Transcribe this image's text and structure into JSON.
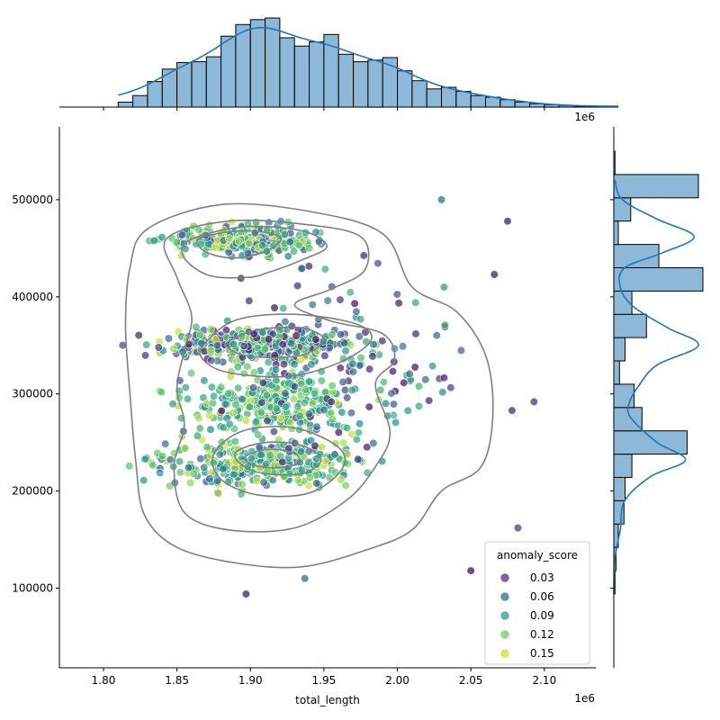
{
  "chart_data": {
    "type": "scatter",
    "title": "",
    "xlabel": "total_length",
    "ylabel": "",
    "x_offset_label": "1e6",
    "x_scale_factor": 1000000,
    "xlim": [
      1770000,
      2135000
    ],
    "ylim": [
      18000,
      575000
    ],
    "x_ticks": [
      1800000,
      1850000,
      1900000,
      1950000,
      2000000,
      2050000,
      2100000
    ],
    "x_tick_labels": [
      "1.80",
      "1.85",
      "1.90",
      "1.95",
      "2.00",
      "2.05",
      "2.10"
    ],
    "y_ticks": [
      100000,
      200000,
      300000,
      400000,
      500000
    ],
    "y_tick_labels": [
      "100000",
      "200000",
      "300000",
      "400000",
      "500000"
    ],
    "grid": false,
    "legend": {
      "title": "anomaly_score",
      "position": "lower-right",
      "entries": [
        {
          "label": "0.03",
          "color": "#50307a"
        },
        {
          "label": "0.06",
          "color": "#3b6a8c"
        },
        {
          "label": "0.09",
          "color": "#2aa08a"
        },
        {
          "label": "0.12",
          "color": "#6ccb5f"
        },
        {
          "label": "0.15",
          "color": "#d2e21b"
        }
      ]
    },
    "colormap": "viridis",
    "point_alpha": 0.7,
    "scatter_clusters": [
      {
        "cx": 1895000,
        "cy": 458000,
        "sx": 40000,
        "sy": 14000,
        "n": 280,
        "score_range": [
          0.06,
          0.16
        ]
      },
      {
        "cx": 1905000,
        "cy": 352000,
        "sx": 55000,
        "sy": 15000,
        "n": 320,
        "score_range": [
          0.03,
          0.16
        ]
      },
      {
        "cx": 1915000,
        "cy": 290000,
        "sx": 50000,
        "sy": 30000,
        "n": 260,
        "score_range": [
          0.08,
          0.16
        ]
      },
      {
        "cx": 1905000,
        "cy": 228000,
        "sx": 55000,
        "sy": 20000,
        "n": 300,
        "score_range": [
          0.06,
          0.16
        ]
      },
      {
        "cx": 1960000,
        "cy": 330000,
        "sx": 70000,
        "sy": 90000,
        "n": 160,
        "score_range": [
          0.02,
          0.12
        ]
      }
    ],
    "highlight_points": [
      {
        "x": 2030000,
        "y": 500000
      },
      {
        "x": 2075000,
        "y": 478000
      },
      {
        "x": 2093000,
        "y": 292000
      },
      {
        "x": 2078000,
        "y": 283000
      },
      {
        "x": 2050000,
        "y": 118000
      },
      {
        "x": 1897000,
        "y": 94000
      },
      {
        "x": 1937000,
        "y": 110000
      },
      {
        "x": 2066000,
        "y": 423000
      },
      {
        "x": 2082000,
        "y": 162000
      }
    ],
    "kde_contours": [
      {
        "level": 1,
        "points": [
          [
            1830000,
            470000
          ],
          [
            1880000,
            495000
          ],
          [
            1940000,
            488000
          ],
          [
            1990000,
            465000
          ],
          [
            2010000,
            410000
          ],
          [
            2040000,
            385000
          ],
          [
            2060000,
            340000
          ],
          [
            2065000,
            280000
          ],
          [
            2057000,
            225000
          ],
          [
            2030000,
            200000
          ],
          [
            2010000,
            160000
          ],
          [
            1980000,
            140000
          ],
          [
            1935000,
            122000
          ],
          [
            1890000,
            126000
          ],
          [
            1850000,
            142000
          ],
          [
            1828000,
            175000
          ],
          [
            1822000,
            230000
          ],
          [
            1818000,
            300000
          ],
          [
            1815000,
            370000
          ],
          [
            1818000,
            430000
          ]
        ]
      },
      {
        "level": 2,
        "points": [
          [
            1843000,
            460000
          ],
          [
            1885000,
            478000
          ],
          [
            1935000,
            475000
          ],
          [
            1975000,
            462000
          ],
          [
            1978000,
            428000
          ],
          [
            1955000,
            408000
          ],
          [
            1930000,
            392000
          ],
          [
            1955000,
            375000
          ],
          [
            1990000,
            362000
          ],
          [
            1998000,
            335000
          ],
          [
            1985000,
            310000
          ],
          [
            1995000,
            260000
          ],
          [
            1985000,
            225000
          ],
          [
            1965000,
            190000
          ],
          [
            1930000,
            162000
          ],
          [
            1885000,
            160000
          ],
          [
            1855000,
            178000
          ],
          [
            1848000,
            225000
          ],
          [
            1855000,
            268000
          ],
          [
            1850000,
            305000
          ],
          [
            1855000,
            345000
          ],
          [
            1860000,
            380000
          ],
          [
            1850000,
            420000
          ]
        ]
      },
      {
        "level": 3,
        "points": [
          [
            1858000,
            458000
          ],
          [
            1895000,
            472000
          ],
          [
            1935000,
            468000
          ],
          [
            1952000,
            452000
          ],
          [
            1935000,
            438000
          ],
          [
            1912000,
            425000
          ],
          [
            1898000,
            420000
          ],
          [
            1872000,
            422000
          ],
          [
            1855000,
            440000
          ]
        ]
      },
      {
        "level": 3,
        "points": [
          [
            1868000,
            350000
          ],
          [
            1890000,
            376000
          ],
          [
            1930000,
            382000
          ],
          [
            1972000,
            372000
          ],
          [
            1982000,
            355000
          ],
          [
            1960000,
            332000
          ],
          [
            1925000,
            318000
          ],
          [
            1885000,
            322000
          ],
          [
            1868000,
            335000
          ]
        ]
      },
      {
        "level": 3,
        "points": [
          [
            1875000,
            238000
          ],
          [
            1895000,
            262000
          ],
          [
            1930000,
            265000
          ],
          [
            1960000,
            245000
          ],
          [
            1962000,
            222000
          ],
          [
            1940000,
            198000
          ],
          [
            1905000,
            196000
          ],
          [
            1880000,
            212000
          ]
        ]
      },
      {
        "level": 4,
        "points": [
          [
            1865000,
            460000
          ],
          [
            1895000,
            468000
          ],
          [
            1920000,
            462000
          ],
          [
            1912000,
            448000
          ],
          [
            1890000,
            440000
          ],
          [
            1870000,
            446000
          ]
        ]
      },
      {
        "level": 4,
        "points": [
          [
            1885000,
            354000
          ],
          [
            1905000,
            366000
          ],
          [
            1935000,
            368000
          ],
          [
            1950000,
            356000
          ],
          [
            1935000,
            340000
          ],
          [
            1905000,
            338000
          ],
          [
            1888000,
            344000
          ]
        ]
      },
      {
        "level": 4,
        "points": [
          [
            1890000,
            240000
          ],
          [
            1910000,
            250000
          ],
          [
            1935000,
            247000
          ],
          [
            1948000,
            232000
          ],
          [
            1935000,
            218000
          ],
          [
            1910000,
            218000
          ],
          [
            1895000,
            226000
          ]
        ]
      },
      {
        "level": 5,
        "points": [
          [
            1897000,
            236000
          ],
          [
            1912000,
            243000
          ],
          [
            1930000,
            239000
          ],
          [
            1932000,
            228000
          ],
          [
            1915000,
            224000
          ],
          [
            1900000,
            228000
          ]
        ]
      }
    ],
    "top_histogram": {
      "bin_start": 1810000,
      "bin_width": 10000,
      "counts": [
        6,
        14,
        31,
        46,
        54,
        55,
        61,
        86,
        100,
        106,
        108,
        84,
        74,
        79,
        88,
        64,
        55,
        57,
        60,
        44,
        32,
        22,
        24,
        19,
        14,
        12,
        9,
        6,
        4,
        3,
        2,
        1,
        1,
        1
      ]
    },
    "right_histogram": {
      "bin_start": 94000,
      "bin_width": 24000,
      "counts": [
        1,
        2,
        4,
        9,
        10,
        16,
        65,
        25,
        18,
        5,
        10,
        29,
        16,
        79,
        40,
        4,
        15,
        75,
        1
      ],
      "kde": [
        [
          94000,
          0
        ],
        [
          130000,
          1
        ],
        [
          160000,
          6
        ],
        [
          190000,
          10
        ],
        [
          215000,
          34
        ],
        [
          232000,
          66
        ],
        [
          250000,
          40
        ],
        [
          275000,
          16
        ],
        [
          290000,
          14
        ],
        [
          310000,
          24
        ],
        [
          330000,
          40
        ],
        [
          350000,
          78
        ],
        [
          368000,
          50
        ],
        [
          390000,
          18
        ],
        [
          410000,
          6
        ],
        [
          430000,
          10
        ],
        [
          445000,
          44
        ],
        [
          462000,
          74
        ],
        [
          480000,
          40
        ],
        [
          500000,
          8
        ],
        [
          520000,
          1
        ]
      ]
    }
  }
}
